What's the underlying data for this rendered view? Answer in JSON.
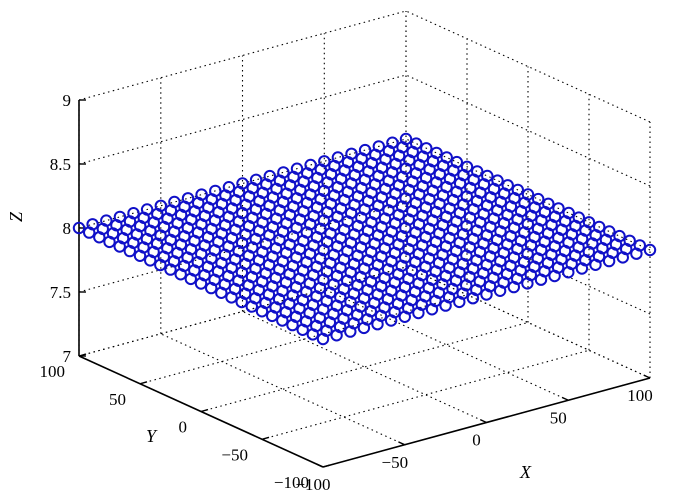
{
  "chart_data": {
    "type": "scatter3d",
    "title": "",
    "xlabel": "X",
    "ylabel": "Y",
    "zlabel": "Z",
    "xlim": [
      -100,
      100
    ],
    "ylim": [
      -100,
      100
    ],
    "zlim": [
      7,
      9
    ],
    "xticks": [
      -100,
      -50,
      0,
      50,
      100
    ],
    "yticks": [
      -100,
      -50,
      0,
      50,
      100
    ],
    "zticks": [
      7,
      7.5,
      8,
      8.5,
      9
    ],
    "xtick_labels": [
      "−100",
      "−50",
      "0",
      "50",
      "100"
    ],
    "ytick_labels": [
      "−100",
      "−50",
      "0",
      "50",
      "100"
    ],
    "ztick_labels": [
      "7",
      "7.5",
      "8",
      "8.5",
      "9"
    ],
    "grid": true,
    "series": [
      {
        "marker": "o",
        "color": "#1010c8",
        "grid_x": {
          "start": -100,
          "stop": 100,
          "count": 25
        },
        "grid_y": {
          "start": -100,
          "stop": 100,
          "count": 25
        },
        "z_constant": 8
      }
    ]
  }
}
